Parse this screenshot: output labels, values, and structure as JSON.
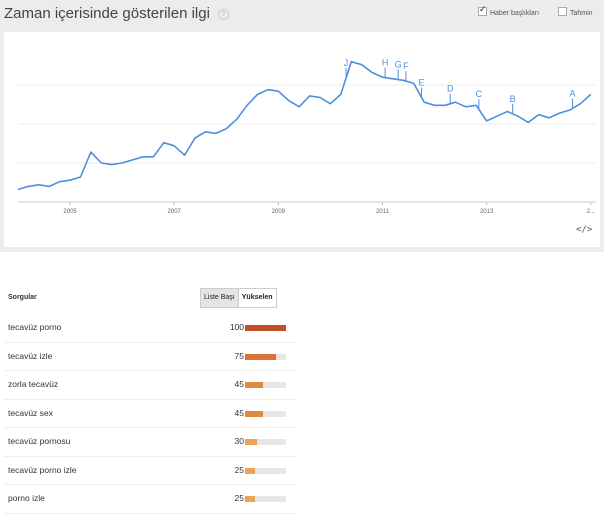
{
  "header": {
    "title": "Zaman içerisinde gösterilen ilgi",
    "help_icon": "question-mark",
    "news_headlines_label": "Haber başlıkları",
    "news_headlines_checked": true,
    "forecast_label": "Tahmin",
    "forecast_checked": false
  },
  "chart_data": {
    "type": "line",
    "x_tick_labels": [
      "2005",
      "2007",
      "2009",
      "2011",
      "2013",
      "2..."
    ],
    "series": [
      {
        "color": "#4e8fdc",
        "x": [
          2004.0,
          2004.2,
          2004.4,
          2004.6,
          2004.8,
          2005.0,
          2005.2,
          2005.4,
          2005.6,
          2005.8,
          2006.0,
          2006.2,
          2006.4,
          2006.6,
          2006.8,
          2007.0,
          2007.2,
          2007.4,
          2007.6,
          2007.8,
          2008.0,
          2008.2,
          2008.4,
          2008.6,
          2008.8,
          2009.0,
          2009.2,
          2009.4,
          2009.6,
          2009.8,
          2010.0,
          2010.2,
          2010.4,
          2010.6,
          2010.8,
          2011.0,
          2011.2,
          2011.4,
          2011.6,
          2011.8,
          2012.0,
          2012.2,
          2012.4,
          2012.6,
          2012.8,
          2013.0,
          2013.2,
          2013.4,
          2013.6,
          2013.8,
          2014.0,
          2014.2,
          2014.4,
          2014.6,
          2014.8,
          2015.0
        ],
        "y": [
          8,
          10,
          11,
          10,
          13,
          14,
          16,
          32,
          25,
          24,
          25,
          27,
          29,
          29,
          38,
          36,
          30,
          41,
          45,
          44,
          47,
          53,
          62,
          69,
          72,
          71,
          65,
          61,
          68,
          67,
          63,
          69,
          90,
          88,
          83,
          80,
          79,
          78,
          76,
          64,
          62,
          62,
          64,
          61,
          62,
          52,
          55,
          58,
          55,
          51,
          56,
          54,
          57,
          59,
          63,
          69
        ]
      }
    ],
    "annotations": [
      {
        "label": "J",
        "x": 2010.3
      },
      {
        "label": "H",
        "x": 2011.05
      },
      {
        "label": "G",
        "x": 2011.3
      },
      {
        "label": "F",
        "x": 2011.45
      },
      {
        "label": "E",
        "x": 2011.75
      },
      {
        "label": "D",
        "x": 2012.3
      },
      {
        "label": "C",
        "x": 2012.85
      },
      {
        "label": "B",
        "x": 2013.5
      },
      {
        "label": "A",
        "x": 2014.65
      }
    ],
    "xlim": [
      2004.0,
      2015.1
    ],
    "ylim": [
      0,
      100
    ],
    "grid": true,
    "legend": "none"
  },
  "embed_icon": "</>",
  "queries": {
    "header": "Sorgular",
    "tab_top": "Liste Başı",
    "tab_rising": "Yükselen",
    "items": [
      {
        "query": "tecavüz porno",
        "value": 100,
        "color": "#c0502b"
      },
      {
        "query": "tecavüz izle",
        "value": 75,
        "color": "#d97232"
      },
      {
        "query": "zorla tecavüz",
        "value": 45,
        "color": "#e08a3c"
      },
      {
        "query": "tecavüz sex",
        "value": 45,
        "color": "#e08a3c"
      },
      {
        "query": "tecavüz pornosu",
        "value": 30,
        "color": "#e8a55a"
      },
      {
        "query": "tecavüz porno izle",
        "value": 25,
        "color": "#e8a55a"
      },
      {
        "query": "porno izle",
        "value": 25,
        "color": "#e8a55a"
      }
    ]
  }
}
